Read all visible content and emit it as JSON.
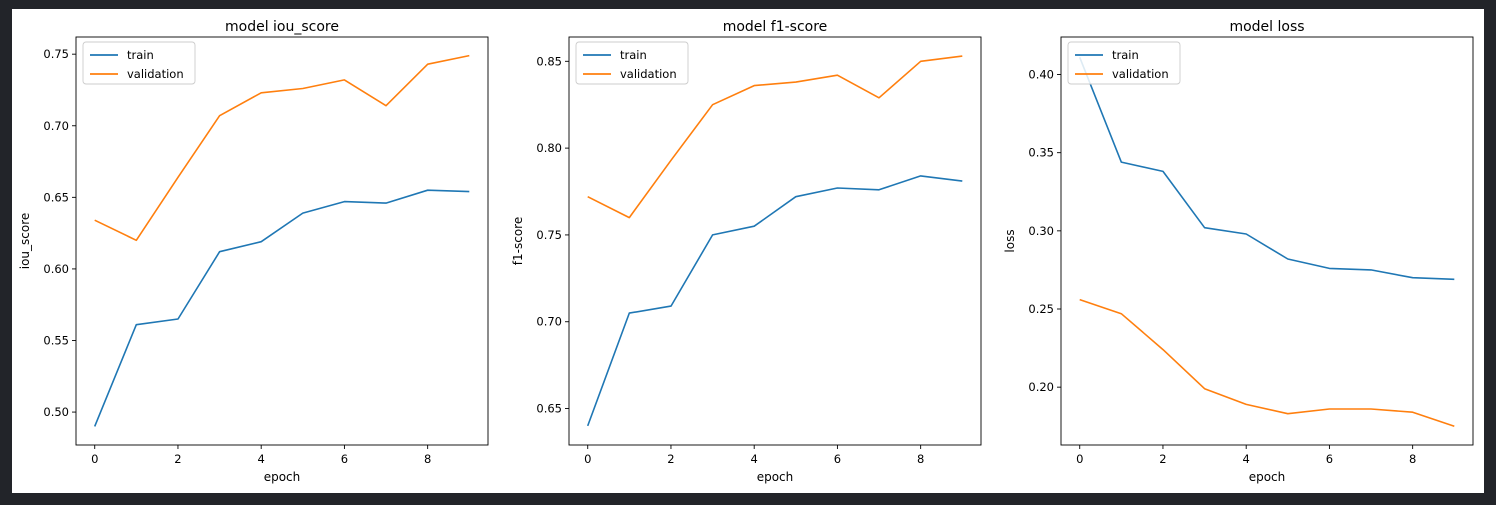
{
  "chart_data": [
    {
      "type": "line",
      "title": "model iou_score",
      "xlabel": "epoch",
      "ylabel": "iou_score",
      "x": [
        0,
        1,
        2,
        3,
        4,
        5,
        6,
        7,
        8,
        9
      ],
      "xticks": [
        0,
        2,
        4,
        6,
        8
      ],
      "xlim": [
        -0.45,
        9.45
      ],
      "yticks": [
        0.5,
        0.55,
        0.6,
        0.65,
        0.7,
        0.75
      ],
      "ylim": [
        0.477,
        0.762
      ],
      "grid": false,
      "legend": "upper left",
      "series": [
        {
          "name": "train",
          "color": "#1f77b4",
          "values": [
            0.49,
            0.561,
            0.565,
            0.612,
            0.619,
            0.639,
            0.647,
            0.646,
            0.655,
            0.654
          ]
        },
        {
          "name": "validation",
          "color": "#ff7f0e",
          "values": [
            0.634,
            0.62,
            0.664,
            0.707,
            0.723,
            0.726,
            0.732,
            0.714,
            0.743,
            0.749
          ]
        }
      ]
    },
    {
      "type": "line",
      "title": "model f1-score",
      "xlabel": "epoch",
      "ylabel": "f1-score",
      "x": [
        0,
        1,
        2,
        3,
        4,
        5,
        6,
        7,
        8,
        9
      ],
      "xticks": [
        0,
        2,
        4,
        6,
        8
      ],
      "xlim": [
        -0.45,
        9.45
      ],
      "yticks": [
        0.65,
        0.7,
        0.75,
        0.8,
        0.85
      ],
      "ylim": [
        0.629,
        0.864
      ],
      "grid": false,
      "legend": "upper left",
      "series": [
        {
          "name": "train",
          "color": "#1f77b4",
          "values": [
            0.64,
            0.705,
            0.709,
            0.75,
            0.755,
            0.772,
            0.777,
            0.776,
            0.784,
            0.781
          ]
        },
        {
          "name": "validation",
          "color": "#ff7f0e",
          "values": [
            0.772,
            0.76,
            0.793,
            0.825,
            0.836,
            0.838,
            0.842,
            0.829,
            0.85,
            0.853
          ]
        }
      ]
    },
    {
      "type": "line",
      "title": "model loss",
      "xlabel": "epoch",
      "ylabel": "loss",
      "x": [
        0,
        1,
        2,
        3,
        4,
        5,
        6,
        7,
        8,
        9
      ],
      "xticks": [
        0,
        2,
        4,
        6,
        8
      ],
      "xlim": [
        -0.45,
        9.45
      ],
      "yticks": [
        0.2,
        0.25,
        0.3,
        0.35,
        0.4
      ],
      "ylim": [
        0.163,
        0.424
      ],
      "grid": false,
      "legend": "upper left",
      "series": [
        {
          "name": "train",
          "color": "#1f77b4",
          "values": [
            0.411,
            0.344,
            0.338,
            0.302,
            0.298,
            0.282,
            0.276,
            0.275,
            0.27,
            0.269
          ]
        },
        {
          "name": "validation",
          "color": "#ff7f0e",
          "values": [
            0.256,
            0.247,
            0.224,
            0.199,
            0.189,
            0.183,
            0.186,
            0.186,
            0.184,
            0.175
          ]
        }
      ]
    }
  ]
}
